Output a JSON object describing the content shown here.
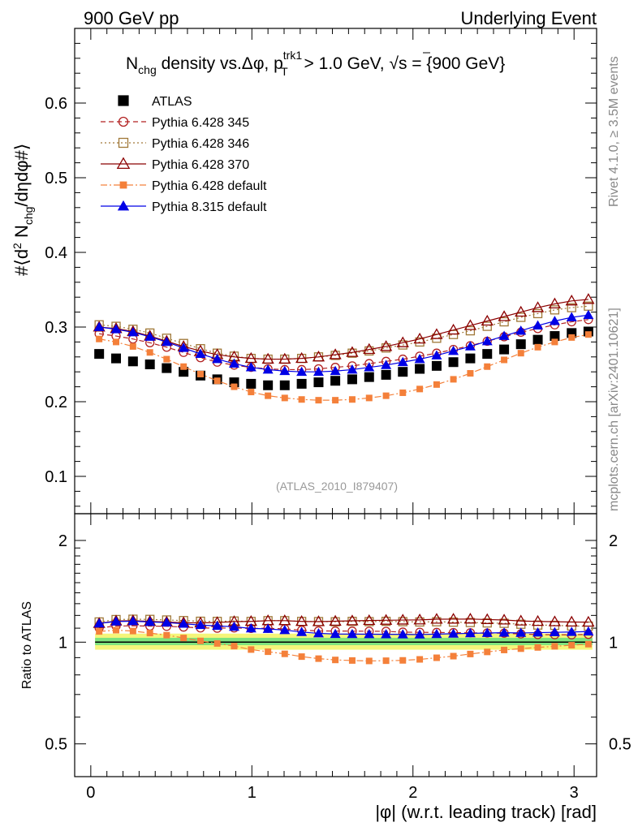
{
  "header": {
    "left": "900 GeV pp",
    "right": "Underlying Event"
  },
  "title": {
    "prefix": "N",
    "prefix_sub": "chg",
    "middle": " density vs.Δφ, p",
    "pt_sub": "T",
    "pt_sup": "trk1",
    "rest": " > 1.0 GeV, ",
    "sqrt": "√",
    "s": "s",
    "energy": " = {900 GeV}"
  },
  "side_labels": {
    "rivet": "Rivet 4.1.0, ≥ 3.5M events",
    "mcplots": "mcplots.cern.ch [arXiv:2401.10621]"
  },
  "watermark": "(ATLAS_2010_I879407)",
  "colors": {
    "atlas": "#000000",
    "p345": "#b22222",
    "p346": "#a07838",
    "p370": "#8b0000",
    "pdefault": "#f4803a",
    "p8": "#0000e6",
    "band_inner": "#7de27d",
    "band_outer": "#f5f57a"
  },
  "chart_data": [
    {
      "panel": "main",
      "type": "scatter",
      "title": "Nchg density vs.Δφ, pT trk1 > 1.0 GeV, √s = {900 GeV}",
      "xlabel": "|φ| (w.r.t. leading track) [rad]",
      "ylabel": "#⟨d² Nchg/dηdφ#⟩",
      "xlim": [
        -0.1,
        3.14
      ],
      "ylim": [
        0.05,
        0.7
      ],
      "yticks": [
        "0.1",
        "0.2",
        "0.3",
        "0.4",
        "0.5",
        "0.6"
      ],
      "ytick_values": [
        0.1,
        0.2,
        0.3,
        0.4,
        0.5,
        0.6
      ],
      "x": [
        0.052,
        0.157,
        0.262,
        0.367,
        0.471,
        0.576,
        0.681,
        0.785,
        0.89,
        0.995,
        1.1,
        1.204,
        1.309,
        1.414,
        1.518,
        1.623,
        1.728,
        1.833,
        1.937,
        2.042,
        2.147,
        2.251,
        2.356,
        2.461,
        2.566,
        2.67,
        2.775,
        2.88,
        2.985,
        3.089
      ],
      "series": [
        {
          "name": "ATLAS",
          "key": "atlas",
          "marker": "filled-square",
          "line": "none",
          "values": [
            0.264,
            0.258,
            0.254,
            0.25,
            0.245,
            0.24,
            0.235,
            0.23,
            0.226,
            0.224,
            0.222,
            0.222,
            0.224,
            0.226,
            0.228,
            0.23,
            0.233,
            0.236,
            0.24,
            0.244,
            0.248,
            0.253,
            0.258,
            0.264,
            0.27,
            0.277,
            0.283,
            0.288,
            0.292,
            0.294
          ]
        },
        {
          "name": "Pythia 6.428 345",
          "key": "p345",
          "marker": "open-circle",
          "line": "dashed",
          "values": [
            0.291,
            0.288,
            0.284,
            0.279,
            0.273,
            0.266,
            0.259,
            0.253,
            0.249,
            0.246,
            0.244,
            0.243,
            0.243,
            0.244,
            0.246,
            0.248,
            0.251,
            0.254,
            0.257,
            0.261,
            0.265,
            0.27,
            0.275,
            0.281,
            0.287,
            0.293,
            0.298,
            0.303,
            0.307,
            0.31
          ]
        },
        {
          "name": "Pythia 6.428 346",
          "key": "p346",
          "marker": "open-square",
          "line": "dotted",
          "values": [
            0.303,
            0.301,
            0.297,
            0.292,
            0.285,
            0.278,
            0.271,
            0.265,
            0.261,
            0.258,
            0.257,
            0.257,
            0.258,
            0.26,
            0.262,
            0.265,
            0.268,
            0.272,
            0.276,
            0.28,
            0.285,
            0.29,
            0.295,
            0.301,
            0.307,
            0.313,
            0.318,
            0.323,
            0.326,
            0.328
          ]
        },
        {
          "name": "Pythia 6.428 370",
          "key": "p370",
          "marker": "open-triangle",
          "line": "solid",
          "values": [
            0.3,
            0.298,
            0.294,
            0.288,
            0.281,
            0.274,
            0.268,
            0.263,
            0.26,
            0.258,
            0.257,
            0.257,
            0.258,
            0.26,
            0.263,
            0.266,
            0.27,
            0.274,
            0.279,
            0.284,
            0.29,
            0.296,
            0.302,
            0.308,
            0.314,
            0.32,
            0.326,
            0.331,
            0.335,
            0.337
          ]
        },
        {
          "name": "Pythia 6.428 default",
          "key": "pdefault",
          "marker": "filled-small-square",
          "line": "dashdot",
          "values": [
            0.284,
            0.28,
            0.274,
            0.266,
            0.257,
            0.247,
            0.237,
            0.228,
            0.22,
            0.213,
            0.208,
            0.205,
            0.203,
            0.202,
            0.202,
            0.203,
            0.205,
            0.208,
            0.212,
            0.217,
            0.223,
            0.23,
            0.238,
            0.247,
            0.256,
            0.265,
            0.273,
            0.28,
            0.286,
            0.29
          ]
        },
        {
          "name": "Pythia 8.315 default",
          "key": "p8",
          "marker": "filled-triangle",
          "line": "solid",
          "values": [
            0.3,
            0.297,
            0.293,
            0.287,
            0.28,
            0.272,
            0.264,
            0.257,
            0.251,
            0.246,
            0.243,
            0.241,
            0.24,
            0.24,
            0.241,
            0.243,
            0.246,
            0.249,
            0.253,
            0.257,
            0.262,
            0.268,
            0.274,
            0.281,
            0.288,
            0.295,
            0.302,
            0.308,
            0.313,
            0.316
          ]
        }
      ]
    },
    {
      "panel": "ratio",
      "type": "scatter",
      "xlabel": "|φ| (w.r.t. leading track) [rad]",
      "ylabel": "Ratio to ATLAS",
      "xlim": [
        -0.1,
        3.14
      ],
      "ylim": [
        0.4,
        2.4
      ],
      "yscale": "log",
      "xticks": [
        "0",
        "1",
        "2",
        "3"
      ],
      "xtick_values": [
        0,
        1,
        2,
        3
      ],
      "yticks": [
        "0.5",
        "1",
        "2"
      ],
      "ytick_values": [
        0.5,
        1,
        2
      ],
      "reference": 1.0,
      "band_inner": [
        0.98,
        1.03
      ],
      "band_outer": [
        0.95,
        1.06
      ],
      "note": "Ratio series computed as each simulation series divided by ATLAS."
    }
  ]
}
